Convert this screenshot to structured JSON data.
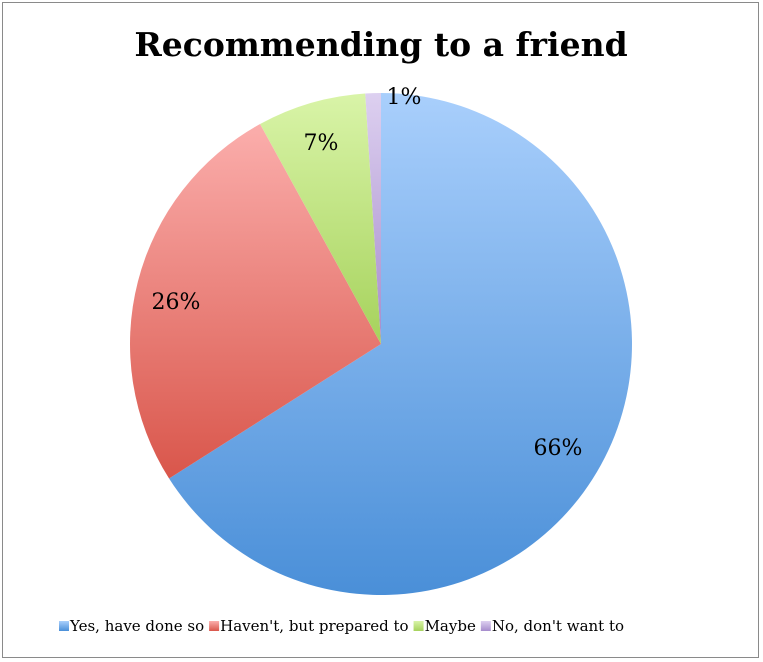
{
  "chart_data": {
    "type": "pie",
    "title": "Recommending to a friend",
    "slices": [
      {
        "label": "Yes, have done so",
        "value": 66,
        "display": "66%",
        "color_light": "#a9cffc",
        "color_dark": "#4a8fd8"
      },
      {
        "label": "Haven't, but prepared to",
        "value": 26,
        "display": "26%",
        "color_light": "#fbaeac",
        "color_dark": "#d9564b"
      },
      {
        "label": "Maybe",
        "value": 7,
        "display": "7%",
        "color_light": "#d9f4a8",
        "color_dark": "#a6d25c"
      },
      {
        "label": "No, don't want to",
        "value": 1,
        "display": "1%",
        "color_light": "#ddd0f0",
        "color_dark": "#a68ccc"
      }
    ],
    "legend_position": "bottom"
  }
}
